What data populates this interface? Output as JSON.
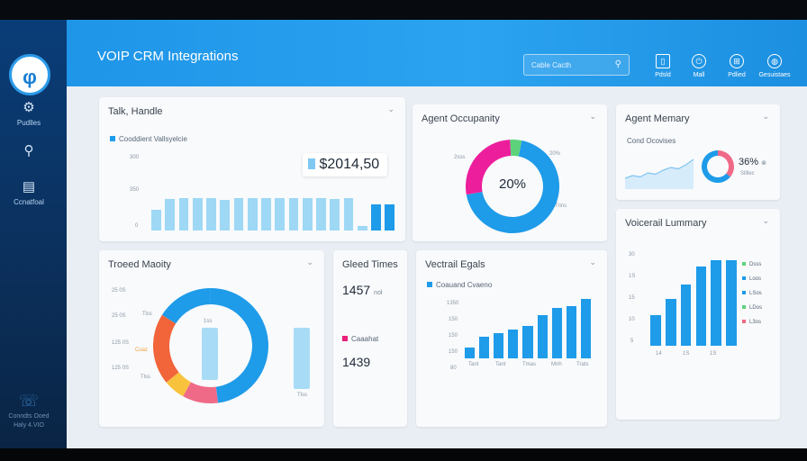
{
  "app": {
    "title": "VOIP CRM Integrations"
  },
  "header": {
    "search_placeholder": "Cable Cacth",
    "buttons": [
      {
        "label": "Pdsld",
        "icon": "document-icon"
      },
      {
        "label": "Mall",
        "icon": "power-icon"
      },
      {
        "label": "Pdlied",
        "icon": "grid-icon"
      },
      {
        "label": "Gesuistaes",
        "icon": "globe-icon"
      }
    ]
  },
  "sidebar": {
    "items": [
      {
        "label": "Pudlles",
        "icon": "gear-icon"
      },
      {
        "label": "",
        "icon": "search-icon"
      },
      {
        "label": "Ccnatfoal",
        "icon": "calendar-icon"
      }
    ],
    "footer": {
      "line1": "Conndts Ooed",
      "line2": "Haly 4.VIO"
    }
  },
  "cards": {
    "talk": {
      "title": "Talk, Handle",
      "legend": "Cooddient Vallsyelcie",
      "value": "$2014,50",
      "ticks": [
        "300",
        "350",
        "0"
      ]
    },
    "occupancy": {
      "title": "Agent Occupanity",
      "center": "20%",
      "tick_left": "2sss",
      "tick_right": "20%",
      "tick_bottom": "Trins"
    },
    "memory": {
      "title": "Agent Memary",
      "subtitle": "Cond Ocovises",
      "percent": "36%",
      "sub_value": "Sllllec"
    },
    "treated": {
      "title": "Troeed Maoity",
      "ticks": [
        "25 0S",
        "25 0S",
        "125 0S",
        "125 0S"
      ],
      "labels": [
        "Tiss",
        "1ss",
        "Cuaz",
        "Tlss",
        "Tlss"
      ]
    },
    "greed": {
      "title": "Gleed Times",
      "value1": "1457",
      "unit1": "nol",
      "legend": "Caaahat",
      "value2": "1439"
    },
    "vectrail": {
      "title": "Vectrail Egals",
      "legend": "Coauand Cvaeno",
      "ticks": [
        "1350",
        "150",
        "150",
        "150",
        "80"
      ],
      "categories": [
        "Tant",
        "Tant",
        "Tmas",
        "Mnh",
        "Trats"
      ]
    },
    "voicemail": {
      "title": "Voicerail Lummary",
      "ticks": [
        "30",
        "1S",
        "15",
        "10",
        "5"
      ],
      "x_labels": [
        "14",
        "1S",
        "1S"
      ],
      "legend": [
        "Dsss",
        "Loos",
        "LSos",
        "LDos",
        "L3os"
      ]
    }
  },
  "chart_data": [
    {
      "type": "bar",
      "title": "Talk, Handle",
      "series": [
        {
          "name": "Cooddient Vallsyelcie",
          "values": [
            38,
            58,
            60,
            60,
            60,
            57,
            60,
            60,
            60,
            60,
            60,
            60,
            60,
            58,
            60,
            8,
            48,
            48
          ]
        }
      ],
      "ylim": [
        0,
        100
      ],
      "colors": [
        "#9ed8f5",
        "#1e9be9"
      ]
    },
    {
      "type": "pie",
      "title": "Agent Occupanity",
      "slices": [
        {
          "label": "blue",
          "value": 69,
          "color": "#1e9be9"
        },
        {
          "label": "magenta",
          "value": 27,
          "color": "#ec1e9c"
        },
        {
          "label": "green",
          "value": 4,
          "color": "#5dd27a"
        }
      ],
      "center_label": "20%"
    },
    {
      "type": "line",
      "title": "Cond Ocovises",
      "series": [
        {
          "values": [
            4,
            6,
            5,
            8,
            7,
            10,
            12,
            11,
            14,
            18
          ]
        }
      ]
    },
    {
      "type": "pie",
      "title": "Agent Memary",
      "slices": [
        {
          "value": 36,
          "color": "#ef6a86"
        },
        {
          "value": 64,
          "color": "#1e9be9"
        }
      ],
      "center_label": "36%"
    },
    {
      "type": "pie",
      "title": "Troeed Maoity",
      "slices": [
        {
          "value": 48,
          "color": "#1e9be9"
        },
        {
          "value": 10,
          "color": "#ef6a86"
        },
        {
          "value": 6,
          "color": "#f9c23c"
        },
        {
          "value": 20,
          "color": "#f2643a"
        },
        {
          "value": 16,
          "color": "#1e9be9"
        }
      ]
    },
    {
      "type": "bar",
      "title": "Vectrail Egals",
      "series": [
        {
          "name": "Coauand Cvaeno",
          "values": [
            15,
            30,
            35,
            40,
            45,
            60,
            70,
            72,
            82
          ]
        }
      ],
      "ylim": [
        0,
        100
      ]
    },
    {
      "type": "bar",
      "title": "Voicerail Lummary",
      "series": [
        {
          "values": [
            36,
            55,
            72,
            93,
            100,
            100
          ]
        }
      ],
      "ylim": [
        0,
        110
      ]
    }
  ]
}
